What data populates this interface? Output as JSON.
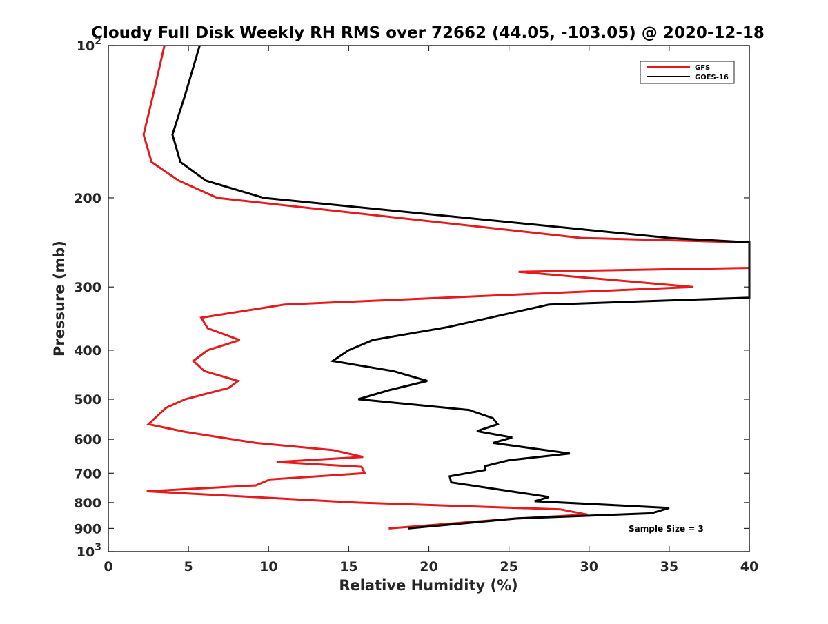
{
  "chart_data": {
    "type": "line",
    "title": "Cloudy Full Disk Weekly RH RMS over 72662 (44.05, -103.05) @ 2020-12-18",
    "xlabel": "Relative Humidity (%)",
    "ylabel": "Pressure (mb)",
    "xlim": [
      0,
      40
    ],
    "ylim": [
      100,
      1000
    ],
    "y_scale": "log",
    "y_reversed": true,
    "x_ticks": [
      "0",
      "5",
      "10",
      "15",
      "20",
      "25",
      "30",
      "35",
      "40"
    ],
    "x_tick_values": [
      0,
      5,
      10,
      15,
      20,
      25,
      30,
      35,
      40
    ],
    "y_tick_values": [
      100,
      200,
      300,
      400,
      500,
      600,
      700,
      800,
      900,
      1000
    ],
    "y_ticks": [
      {
        "base": "10",
        "exp": "2"
      },
      {
        "base": "200",
        "exp": ""
      },
      {
        "base": "300",
        "exp": ""
      },
      {
        "base": "400",
        "exp": ""
      },
      {
        "base": "500",
        "exp": ""
      },
      {
        "base": "600",
        "exp": ""
      },
      {
        "base": "700",
        "exp": ""
      },
      {
        "base": "800",
        "exp": ""
      },
      {
        "base": "900",
        "exp": ""
      },
      {
        "base": "10",
        "exp": "3"
      }
    ],
    "legend_position": "top-right",
    "annotation": "Sample Size = 3",
    "series": [
      {
        "name": "GFS",
        "color": "#e41a1c",
        "points": [
          [
            3.5,
            100
          ],
          [
            2.8,
            125
          ],
          [
            2.2,
            150
          ],
          [
            2.7,
            170
          ],
          [
            4.4,
            185
          ],
          [
            6.8,
            200
          ],
          [
            29.5,
            240
          ],
          [
            40,
            245
          ],
          [
            40,
            275
          ],
          [
            25.6,
            280
          ],
          [
            36.5,
            300
          ],
          [
            11.0,
            325
          ],
          [
            5.8,
            345
          ],
          [
            6.2,
            362
          ],
          [
            8.2,
            382
          ],
          [
            6.2,
            400
          ],
          [
            5.3,
            420
          ],
          [
            6.0,
            440
          ],
          [
            8.1,
            460
          ],
          [
            7.5,
            475
          ],
          [
            4.8,
            500
          ],
          [
            3.6,
            520
          ],
          [
            2.5,
            560
          ],
          [
            4.8,
            580
          ],
          [
            9.2,
            610
          ],
          [
            14.0,
            630
          ],
          [
            15.9,
            650
          ],
          [
            10.5,
            665
          ],
          [
            15.8,
            680
          ],
          [
            16.0,
            700
          ],
          [
            10.1,
            720
          ],
          [
            9.2,
            740
          ],
          [
            2.4,
            760
          ],
          [
            15.5,
            800
          ],
          [
            28.2,
            825
          ],
          [
            29.9,
            845
          ],
          [
            25.5,
            860
          ],
          [
            17.5,
            900
          ]
        ]
      },
      {
        "name": "GOES-16",
        "color": "#000000",
        "points": [
          [
            5.7,
            100
          ],
          [
            4.8,
            125
          ],
          [
            4.0,
            150
          ],
          [
            4.5,
            170
          ],
          [
            6.1,
            185
          ],
          [
            9.7,
            200
          ],
          [
            35.0,
            240
          ],
          [
            40,
            245
          ],
          [
            40,
            315
          ],
          [
            27.5,
            325
          ],
          [
            21.2,
            360
          ],
          [
            16.5,
            382
          ],
          [
            15.0,
            400
          ],
          [
            14.0,
            420
          ],
          [
            17.8,
            440
          ],
          [
            19.9,
            460
          ],
          [
            17.5,
            480
          ],
          [
            15.6,
            500
          ],
          [
            22.5,
            525
          ],
          [
            24.0,
            545
          ],
          [
            24.3,
            560
          ],
          [
            23.0,
            578
          ],
          [
            25.2,
            595
          ],
          [
            24.0,
            610
          ],
          [
            28.8,
            640
          ],
          [
            25.0,
            660
          ],
          [
            23.5,
            678
          ],
          [
            23.5,
            690
          ],
          [
            21.3,
            710
          ],
          [
            21.4,
            730
          ],
          [
            27.5,
            780
          ],
          [
            26.6,
            795
          ],
          [
            35.0,
            820
          ],
          [
            33.9,
            840
          ],
          [
            25.5,
            860
          ],
          [
            18.7,
            900
          ]
        ]
      }
    ]
  }
}
